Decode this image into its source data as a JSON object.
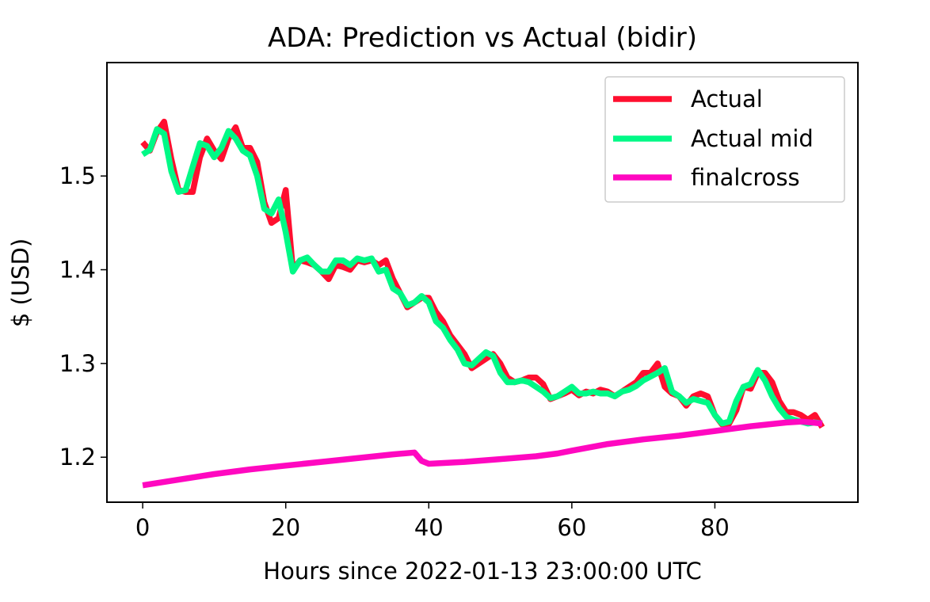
{
  "chart_data": {
    "type": "line",
    "title": "ADA: Prediction vs Actual (bidir)",
    "xlabel": "Hours since 2022-01-13 23:00:00 UTC",
    "ylabel": "$ (USD)",
    "xlim": [
      -5,
      100
    ],
    "ylim": [
      1.152,
      1.621
    ],
    "xticks": [
      0,
      20,
      40,
      60,
      80
    ],
    "xtick_labels": [
      "0",
      "20",
      "40",
      "60",
      "80"
    ],
    "yticks": [
      1.2,
      1.3,
      1.4,
      1.5
    ],
    "ytick_labels": [
      "1.2",
      "1.3",
      "1.4",
      "1.5"
    ],
    "grid": false,
    "legend_position": "upper right",
    "series": [
      {
        "name": "Actual",
        "color": "#ff0f2f",
        "x": [
          0,
          1,
          2,
          3,
          4,
          5,
          6,
          7,
          8,
          9,
          10,
          11,
          12,
          13,
          14,
          15,
          16,
          17,
          18,
          19,
          20,
          21,
          22,
          23,
          24,
          25,
          26,
          27,
          28,
          29,
          30,
          31,
          32,
          33,
          34,
          35,
          36,
          37,
          38,
          39,
          40,
          41,
          42,
          43,
          44,
          45,
          46,
          47,
          48,
          49,
          50,
          51,
          52,
          53,
          54,
          55,
          56,
          57,
          58,
          59,
          60,
          61,
          62,
          63,
          64,
          65,
          66,
          67,
          68,
          69,
          70,
          71,
          72,
          73,
          74,
          75,
          76,
          77,
          78,
          79,
          80,
          81,
          82,
          83,
          84,
          85,
          86,
          87,
          88,
          89,
          90,
          91,
          92,
          93,
          94,
          95
        ],
        "values": [
          1.536,
          1.527,
          1.547,
          1.558,
          1.518,
          1.485,
          1.483,
          1.483,
          1.52,
          1.54,
          1.527,
          1.518,
          1.54,
          1.552,
          1.53,
          1.53,
          1.515,
          1.472,
          1.45,
          1.455,
          1.485,
          1.4,
          1.41,
          1.408,
          1.405,
          1.398,
          1.39,
          1.405,
          1.403,
          1.4,
          1.41,
          1.408,
          1.41,
          1.405,
          1.41,
          1.39,
          1.375,
          1.36,
          1.365,
          1.37,
          1.37,
          1.355,
          1.345,
          1.33,
          1.32,
          1.31,
          1.295,
          1.3,
          1.305,
          1.31,
          1.3,
          1.285,
          1.28,
          1.282,
          1.285,
          1.285,
          1.278,
          1.262,
          1.265,
          1.268,
          1.272,
          1.266,
          1.27,
          1.268,
          1.272,
          1.27,
          1.265,
          1.27,
          1.275,
          1.28,
          1.29,
          1.29,
          1.3,
          1.275,
          1.268,
          1.265,
          1.255,
          1.265,
          1.268,
          1.265,
          1.245,
          1.235,
          1.236,
          1.25,
          1.275,
          1.273,
          1.29,
          1.29,
          1.28,
          1.26,
          1.248,
          1.248,
          1.245,
          1.24,
          1.245,
          1.232
        ]
      },
      {
        "name": "Actual mid",
        "color": "#00f986",
        "x": [
          0,
          1,
          2,
          3,
          4,
          5,
          6,
          7,
          8,
          9,
          10,
          11,
          12,
          13,
          14,
          15,
          16,
          17,
          18,
          19,
          20,
          21,
          22,
          23,
          24,
          25,
          26,
          27,
          28,
          29,
          30,
          31,
          32,
          33,
          34,
          35,
          36,
          37,
          38,
          39,
          40,
          41,
          42,
          43,
          44,
          45,
          46,
          47,
          48,
          49,
          50,
          51,
          52,
          53,
          54,
          55,
          56,
          57,
          58,
          59,
          60,
          61,
          62,
          63,
          64,
          65,
          66,
          67,
          68,
          69,
          70,
          71,
          72,
          73,
          74,
          75,
          76,
          77,
          78,
          79,
          80,
          81,
          82,
          83,
          84,
          85,
          86,
          87,
          88,
          89,
          90,
          91,
          92,
          93,
          94,
          95
        ],
        "values": [
          1.523,
          1.528,
          1.55,
          1.545,
          1.505,
          1.483,
          1.485,
          1.51,
          1.535,
          1.532,
          1.52,
          1.53,
          1.548,
          1.54,
          1.527,
          1.522,
          1.5,
          1.465,
          1.46,
          1.475,
          1.44,
          1.398,
          1.41,
          1.413,
          1.405,
          1.398,
          1.398,
          1.41,
          1.41,
          1.405,
          1.412,
          1.41,
          1.412,
          1.398,
          1.4,
          1.38,
          1.375,
          1.362,
          1.365,
          1.372,
          1.365,
          1.345,
          1.338,
          1.325,
          1.315,
          1.3,
          1.298,
          1.305,
          1.312,
          1.308,
          1.29,
          1.28,
          1.28,
          1.282,
          1.28,
          1.275,
          1.27,
          1.263,
          1.265,
          1.27,
          1.275,
          1.268,
          1.268,
          1.27,
          1.268,
          1.268,
          1.265,
          1.27,
          1.272,
          1.276,
          1.282,
          1.286,
          1.29,
          1.295,
          1.27,
          1.265,
          1.258,
          1.262,
          1.26,
          1.258,
          1.245,
          1.236,
          1.238,
          1.26,
          1.275,
          1.278,
          1.293,
          1.282,
          1.265,
          1.252,
          1.243,
          1.24,
          1.238,
          1.236,
          1.237,
          1.236
        ]
      },
      {
        "name": "finalcross",
        "color": "#ff08c0",
        "x": [
          0,
          5,
          10,
          15,
          20,
          25,
          30,
          35,
          38,
          39,
          40,
          45,
          50,
          55,
          58,
          60,
          65,
          70,
          75,
          80,
          85,
          90,
          92,
          95
        ],
        "values": [
          1.17,
          1.176,
          1.182,
          1.187,
          1.191,
          1.195,
          1.199,
          1.203,
          1.205,
          1.196,
          1.193,
          1.195,
          1.198,
          1.201,
          1.204,
          1.207,
          1.214,
          1.219,
          1.223,
          1.228,
          1.233,
          1.237,
          1.238,
          1.236
        ]
      }
    ]
  }
}
